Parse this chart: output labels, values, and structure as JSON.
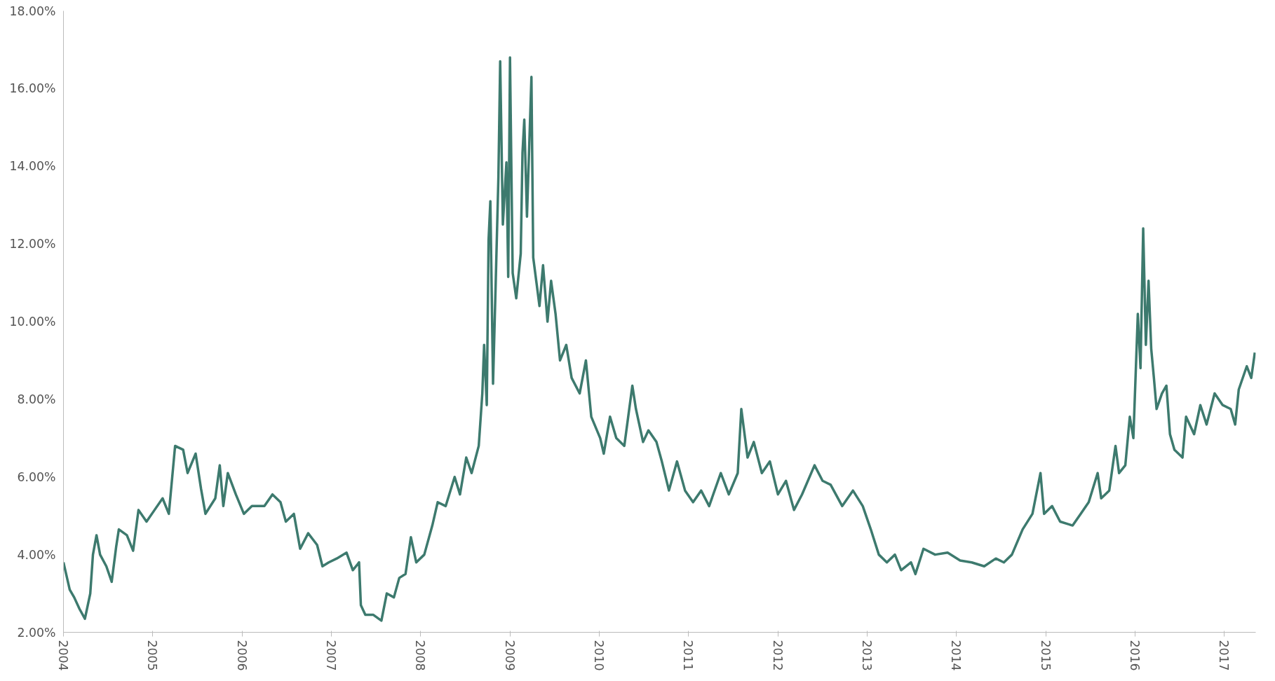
{
  "chart_data": {
    "type": "line",
    "grid": false,
    "marker": "none",
    "line_style": "solid",
    "xlim": [
      2004,
      2017.35
    ],
    "xticks": [
      {
        "value": 2004,
        "label": "2004"
      },
      {
        "value": 2005,
        "label": "2005"
      },
      {
        "value": 2006,
        "label": "2006"
      },
      {
        "value": 2007,
        "label": "2007"
      },
      {
        "value": 2008,
        "label": "2008"
      },
      {
        "value": 2009,
        "label": "2009"
      },
      {
        "value": 2010,
        "label": "2010"
      },
      {
        "value": 2011,
        "label": "2011"
      },
      {
        "value": 2012,
        "label": "2012"
      },
      {
        "value": 2013,
        "label": "2013"
      },
      {
        "value": 2014,
        "label": "2014"
      },
      {
        "value": 2015,
        "label": "2015"
      },
      {
        "value": 2016,
        "label": "2016"
      },
      {
        "value": 2017,
        "label": "2017"
      }
    ],
    "ylim": [
      2,
      18
    ],
    "yticks": [
      {
        "value": 2,
        "label": "2.00%"
      },
      {
        "value": 4,
        "label": "4.00%"
      },
      {
        "value": 6,
        "label": "6.00%"
      },
      {
        "value": 8,
        "label": "8.00%"
      },
      {
        "value": 10,
        "label": "10.00%"
      },
      {
        "value": 12,
        "label": "12.00%"
      },
      {
        "value": 14,
        "label": "14.00%"
      },
      {
        "value": 16,
        "label": "16.00%"
      },
      {
        "value": 18,
        "label": "18.00%"
      }
    ],
    "x": [
      2004.0,
      2004.07,
      2004.12,
      2004.18,
      2004.24,
      2004.3,
      2004.33,
      2004.37,
      2004.41,
      2004.48,
      2004.54,
      2004.59,
      2004.62,
      2004.71,
      2004.78,
      2004.84,
      2004.93,
      2005.02,
      2005.11,
      2005.18,
      2005.25,
      2005.34,
      2005.39,
      2005.48,
      2005.54,
      2005.59,
      2005.7,
      2005.75,
      2005.79,
      2005.84,
      2005.93,
      2006.02,
      2006.11,
      2006.25,
      2006.34,
      2006.43,
      2006.49,
      2006.58,
      2006.65,
      2006.74,
      2006.84,
      2006.9,
      2006.97,
      2007.06,
      2007.17,
      2007.24,
      2007.31,
      2007.33,
      2007.38,
      2007.47,
      2007.56,
      2007.62,
      2007.7,
      2007.76,
      2007.83,
      2007.89,
      2007.95,
      2008.04,
      2008.13,
      2008.19,
      2008.28,
      2008.38,
      2008.44,
      2008.51,
      2008.57,
      2008.65,
      2008.69,
      2008.71,
      2008.74,
      2008.76,
      2008.78,
      2008.81,
      2008.84,
      2008.87,
      2008.89,
      2008.92,
      2008.96,
      2008.98,
      2009.0,
      2009.03,
      2009.07,
      2009.12,
      2009.14,
      2009.16,
      2009.19,
      2009.24,
      2009.26,
      2009.33,
      2009.37,
      2009.42,
      2009.46,
      2009.51,
      2009.56,
      2009.63,
      2009.69,
      2009.78,
      2009.85,
      2009.91,
      2010.01,
      2010.05,
      2010.12,
      2010.19,
      2010.28,
      2010.37,
      2010.41,
      2010.49,
      2010.55,
      2010.64,
      2010.7,
      2010.78,
      2010.87,
      2010.96,
      2011.05,
      2011.14,
      2011.23,
      2011.36,
      2011.45,
      2011.55,
      2011.59,
      2011.66,
      2011.73,
      2011.82,
      2011.91,
      2012.0,
      2012.09,
      2012.18,
      2012.27,
      2012.41,
      2012.5,
      2012.59,
      2012.72,
      2012.84,
      2012.95,
      2013.04,
      2013.13,
      2013.22,
      2013.31,
      2013.38,
      2013.49,
      2013.54,
      2013.63,
      2013.76,
      2013.9,
      2014.04,
      2014.17,
      2014.31,
      2014.44,
      2014.53,
      2014.62,
      2014.74,
      2014.85,
      2014.94,
      2014.98,
      2015.07,
      2015.16,
      2015.3,
      2015.39,
      2015.48,
      2015.58,
      2015.62,
      2015.71,
      2015.78,
      2015.82,
      2015.89,
      2015.94,
      2015.98,
      2016.03,
      2016.06,
      2016.09,
      2016.12,
      2016.15,
      2016.18,
      2016.21,
      2016.24,
      2016.3,
      2016.35,
      2016.39,
      2016.44,
      2016.53,
      2016.57,
      2016.66,
      2016.73,
      2016.8,
      2016.89,
      2016.98,
      2017.07,
      2017.12,
      2017.16,
      2017.25,
      2017.3,
      2017.34
    ],
    "series": [
      {
        "color": "#3d7a6e",
        "values": [
          3.8,
          3.1,
          2.9,
          2.6,
          2.35,
          3.0,
          4.0,
          4.5,
          4.0,
          3.7,
          3.3,
          4.2,
          4.65,
          4.5,
          4.1,
          5.15,
          4.85,
          5.15,
          5.45,
          5.05,
          6.8,
          6.7,
          6.1,
          6.6,
          5.7,
          5.05,
          5.45,
          6.3,
          5.25,
          6.1,
          5.55,
          5.05,
          5.25,
          5.25,
          5.55,
          5.35,
          4.85,
          5.05,
          4.15,
          4.55,
          4.25,
          3.7,
          3.8,
          3.9,
          4.05,
          3.6,
          3.8,
          2.7,
          2.45,
          2.45,
          2.3,
          3.0,
          2.9,
          3.4,
          3.5,
          4.45,
          3.8,
          4.0,
          4.75,
          5.35,
          5.25,
          6.0,
          5.55,
          6.5,
          6.1,
          6.8,
          8.15,
          9.4,
          7.85,
          12.1,
          13.1,
          8.4,
          11.0,
          13.7,
          16.7,
          12.5,
          14.1,
          11.15,
          16.8,
          11.25,
          10.6,
          11.75,
          14.35,
          15.2,
          12.7,
          16.3,
          11.65,
          10.4,
          11.45,
          10.0,
          11.05,
          10.2,
          9.0,
          9.4,
          8.55,
          8.15,
          9.0,
          7.55,
          7.0,
          6.6,
          7.55,
          7.0,
          6.8,
          8.35,
          7.75,
          6.9,
          7.2,
          6.9,
          6.4,
          5.65,
          6.4,
          5.65,
          5.35,
          5.65,
          5.25,
          6.1,
          5.55,
          6.1,
          7.75,
          6.5,
          6.9,
          6.1,
          6.4,
          5.55,
          5.9,
          5.15,
          5.55,
          6.3,
          5.9,
          5.8,
          5.25,
          5.65,
          5.25,
          4.65,
          4.0,
          3.8,
          4.0,
          3.6,
          3.8,
          3.5,
          4.15,
          4.0,
          4.05,
          3.85,
          3.8,
          3.7,
          3.9,
          3.8,
          4.0,
          4.65,
          5.05,
          6.1,
          5.05,
          5.25,
          4.85,
          4.75,
          5.05,
          5.35,
          6.1,
          5.45,
          5.65,
          6.8,
          6.1,
          6.3,
          7.55,
          7.0,
          10.2,
          8.8,
          12.4,
          9.4,
          11.05,
          9.3,
          8.55,
          7.75,
          8.15,
          8.35,
          7.1,
          6.7,
          6.5,
          7.55,
          7.1,
          7.85,
          7.35,
          8.15,
          7.85,
          7.75,
          7.35,
          8.25,
          8.85,
          8.55,
          9.2
        ]
      }
    ]
  }
}
